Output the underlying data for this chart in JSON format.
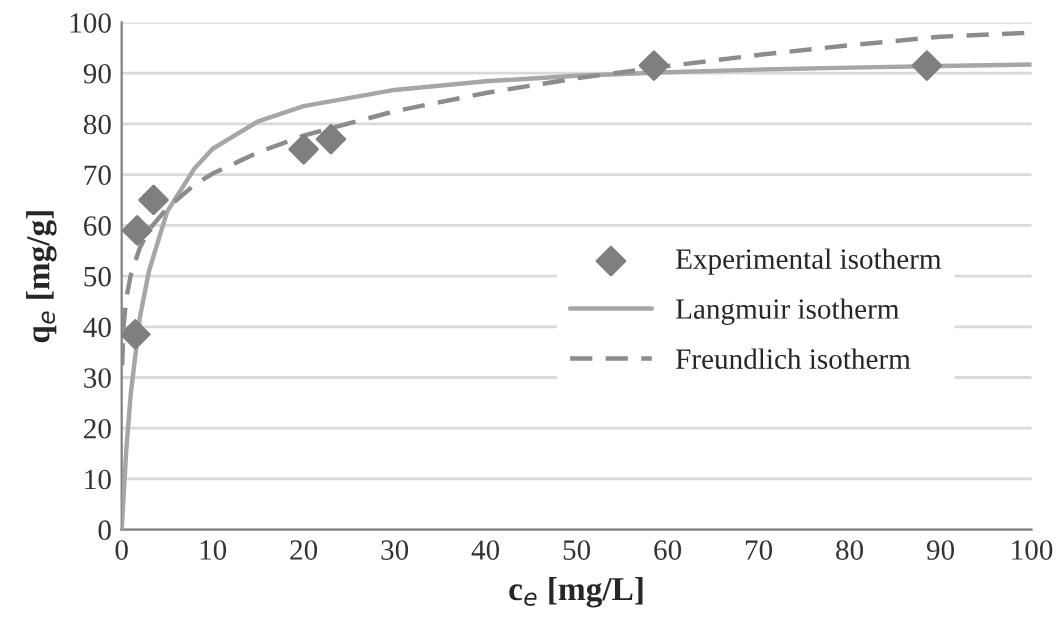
{
  "chart_data": {
    "type": "scatter",
    "xlabel": "c$_{e}$ [mg/L]",
    "ylabel": "q$_{e}$ [mg/g]",
    "xlim": [
      0,
      100
    ],
    "ylim": [
      0,
      100
    ],
    "xticks": [
      0,
      10,
      20,
      30,
      40,
      50,
      60,
      70,
      80,
      90,
      100
    ],
    "yticks": [
      0,
      10,
      20,
      30,
      40,
      50,
      60,
      70,
      80,
      90,
      100
    ],
    "grid": "y",
    "legend": "right",
    "series": [
      {
        "name": "Experimental isotherm",
        "marker": "diamond",
        "color": "#7f7f7f",
        "x": [
          1.5,
          1.7,
          3.5,
          20,
          23,
          58.5,
          88.5
        ],
        "values": [
          38.5,
          59,
          65,
          75,
          77,
          91.5,
          91.5
        ]
      },
      {
        "name": "Langmuir isotherm",
        "type": "line",
        "line_style": "solid",
        "color": "#a6a6a6",
        "x": [
          0,
          0.5,
          1,
          2,
          3,
          5,
          8,
          10,
          15,
          20,
          30,
          40,
          50,
          60,
          70,
          80,
          90,
          100
        ],
        "values": [
          0,
          15.6,
          26.8,
          41.8,
          51,
          62.7,
          71.2,
          75.1,
          80.5,
          83.5,
          86.7,
          88.4,
          89.5,
          90.2,
          90.7,
          91.1,
          91.4,
          91.7
        ]
      },
      {
        "name": "Freundlich isotherm",
        "type": "line",
        "line_style": "dashed",
        "color": "#8c8c8c",
        "x": [
          0.05,
          0.2,
          0.5,
          1,
          2,
          3,
          5,
          8,
          10,
          15,
          20,
          30,
          40,
          50,
          60,
          70,
          80,
          90,
          100
        ],
        "values": [
          32.4,
          40.1,
          45.5,
          50.2,
          55.6,
          59.1,
          63.4,
          68,
          70.2,
          74.4,
          77.7,
          82.5,
          86.1,
          89,
          91.4,
          93.6,
          95.5,
          97.2,
          98
        ]
      }
    ]
  }
}
